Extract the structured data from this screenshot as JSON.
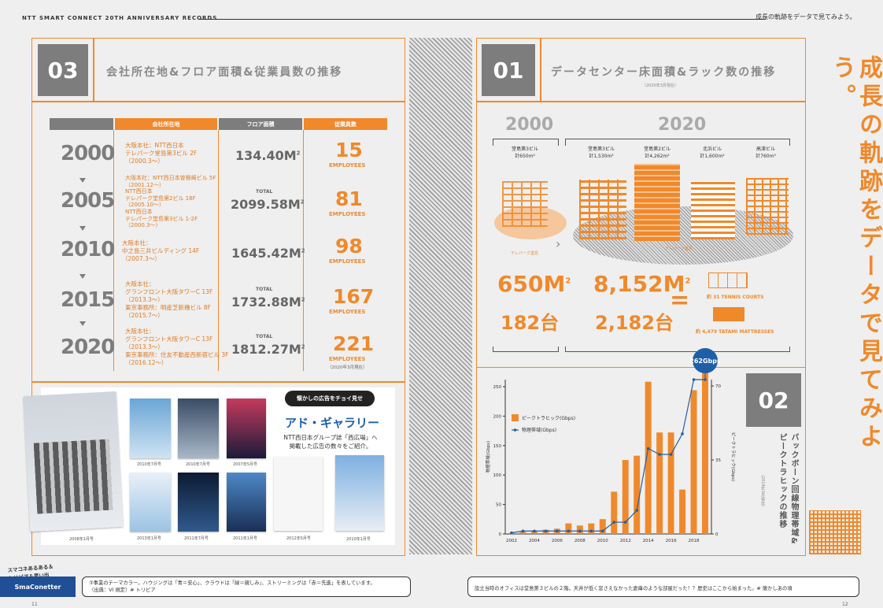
{
  "header": {
    "left": "NTT SMART CONNECT 20TH ANNIVERSARY RECORDS",
    "right": "成長の軌跡をデータで見てみよう。"
  },
  "s03": {
    "num": "03",
    "title": "会社所在地&フロア面積&従業員数の推移",
    "headers": [
      "会社所在地",
      "フロア面積",
      "従業員数"
    ],
    "rows": [
      {
        "year": "2000",
        "addr": [
          "大阪本社：NTT西日本",
          "テレパーク堂島第3ビル 2F",
          "（2000.3〜）"
        ],
        "total": "",
        "area": "134.40M",
        "emp": "15"
      },
      {
        "year": "2005",
        "addr": [
          "大阪本社：NTT西日本曽根崎ビル 5F",
          "（2001.12〜）",
          "NTT西日本",
          "テレパーク堂島第2ビル 18F",
          "（2005.10〜）",
          "NTT西日本",
          "テレパーク堂島第3ビル 1-2F",
          "（2000.3〜）"
        ],
        "total": "TOTAL",
        "area": "2099.58M",
        "emp": "81"
      },
      {
        "year": "2010",
        "addr": [
          "大阪本社：",
          "中之島三井ビルディング 14F",
          "（2007.3〜）"
        ],
        "total": "",
        "area": "1645.42M",
        "emp": "98"
      },
      {
        "year": "2015",
        "addr": [
          "大阪本社：",
          "グランフロント大阪タワーC 13F",
          "（2013.3〜）",
          "東京事務所：明産芝新橋ビル 8F",
          "（2015.7〜）"
        ],
        "total": "TOTAL",
        "area": "1732.88M",
        "emp": "167"
      },
      {
        "year": "2020",
        "addr": [
          "大阪本社：",
          "グランフロント大阪タワーC 13F",
          "（2013.3〜）",
          "東京事務所：住友不動産西新宿ビル 3F",
          "（2016.12〜）"
        ],
        "total": "TOTAL",
        "area": "1812.27M",
        "emp": "221"
      }
    ],
    "emp_label": "EMPLOYEES",
    "note": "（2020年3月現在）"
  },
  "gallery": {
    "bubble": "懐かしの広告をチョイ見せ",
    "title_a": "アド・",
    "title_b": "ギャラリー",
    "desc1": "NTT西日本グループ誌「西広場」へ",
    "desc2": "掲載した広告の数々をご紹介。",
    "labels": [
      "2008年1月号",
      "2010年7月号",
      "2007年5月号",
      "2013年1月号",
      "2011年7月号",
      "2011年1月号",
      "2012年5月号",
      "2010年1月号"
    ]
  },
  "s01": {
    "num": "01",
    "title": "データセンター床面積&ラック数の推移",
    "sub": "（2020年3月現在）",
    "y2000": "2000",
    "y2020": "2020",
    "b1": {
      "name": "堂島第3ビル",
      "area": "計650m²"
    },
    "b2": {
      "name": "堂島第3ビル",
      "area": "計1,530m²"
    },
    "b3": {
      "name": "堂島第2ビル",
      "area": "計4,262m²"
    },
    "b4": {
      "name": "北浜ビル",
      "area": "計1,600m²"
    },
    "b5": {
      "name": "高津ビル",
      "area": "計760m²"
    },
    "tp1": "テレパーク堂島",
    "tp2": "テレパーク堂島",
    "area2000": "650M",
    "racks2000": "182台",
    "area2020": "8,152M",
    "racks2020": "2,182台",
    "tennis": "約 31 TENNIS COURTS",
    "tatami": "約 4,479 TATAMI MATTRESSES",
    "sq": "2"
  },
  "s02": {
    "num": "02",
    "title": "バックボーン回線物理帯域&ピークトラヒックの推移",
    "sub": "（2019年3月現在）",
    "peak_badge": "262Gbps"
  },
  "chart_data": {
    "type": "bar",
    "x": [
      2002,
      2003,
      2004,
      2005,
      2006,
      2007,
      2008,
      2009,
      2010,
      2011,
      2012,
      2013,
      2014,
      2015,
      2016,
      2017,
      2018,
      2019
    ],
    "x_ticks": [
      "2002",
      "2004",
      "2006",
      "2008",
      "2010",
      "2012",
      "2014",
      "2016",
      "2018"
    ],
    "series": [
      {
        "name": "ピークトラヒック(Gbps)",
        "type": "bar",
        "axis": "right",
        "values": [
          0.5,
          1,
          1.5,
          2,
          2.5,
          5,
          4,
          5,
          7,
          20,
          35,
          37,
          72,
          48,
          48,
          21,
          68,
          80
        ]
      },
      {
        "name": "物理帯域(Gbps)",
        "type": "line",
        "axis": "left",
        "values": [
          2,
          5,
          5,
          5,
          5,
          5,
          5,
          5,
          5,
          20,
          20,
          40,
          145,
          135,
          135,
          170,
          262,
          262
        ]
      }
    ],
    "ylabel_left": "物理帯域(Gbps)",
    "ylabel_right": "ピークトラヒック(Gbps)",
    "yticks_left": [
      "0",
      "50",
      "100",
      "150",
      "200",
      "250"
    ],
    "yticks_right": [
      "0",
      "35",
      "70"
    ],
    "ylim_left": [
      0,
      262
    ],
    "ylim_right": [
      0,
      73
    ]
  },
  "bigtext": "成長の軌跡をデータで見てみよう。",
  "footer": {
    "tag1": "スマコネあるある＆",
    "tag2": "トリビア＆思い出",
    "brand": "SmaConetter",
    "left_line1": "③事業のテーマカラー。ハウジングは「青＝安心」、クラウドは「緑＝親しみ」、ストリーミングは「赤＝先進」を表しています。",
    "left_line2": "（出典：VI 規定）# トリビア",
    "right_line": "設立当時のオフィスは堂島第３ビルの２階。天井が低く窓さえなかった倉庫のような部屋だった！？歴史はここから始まった。# 懐かしあの頃",
    "page_l": "11",
    "page_r": "12"
  },
  "colors": {
    "accent": "#f0892b",
    "grey": "#7d7d7d",
    "bg": "#efefef"
  }
}
